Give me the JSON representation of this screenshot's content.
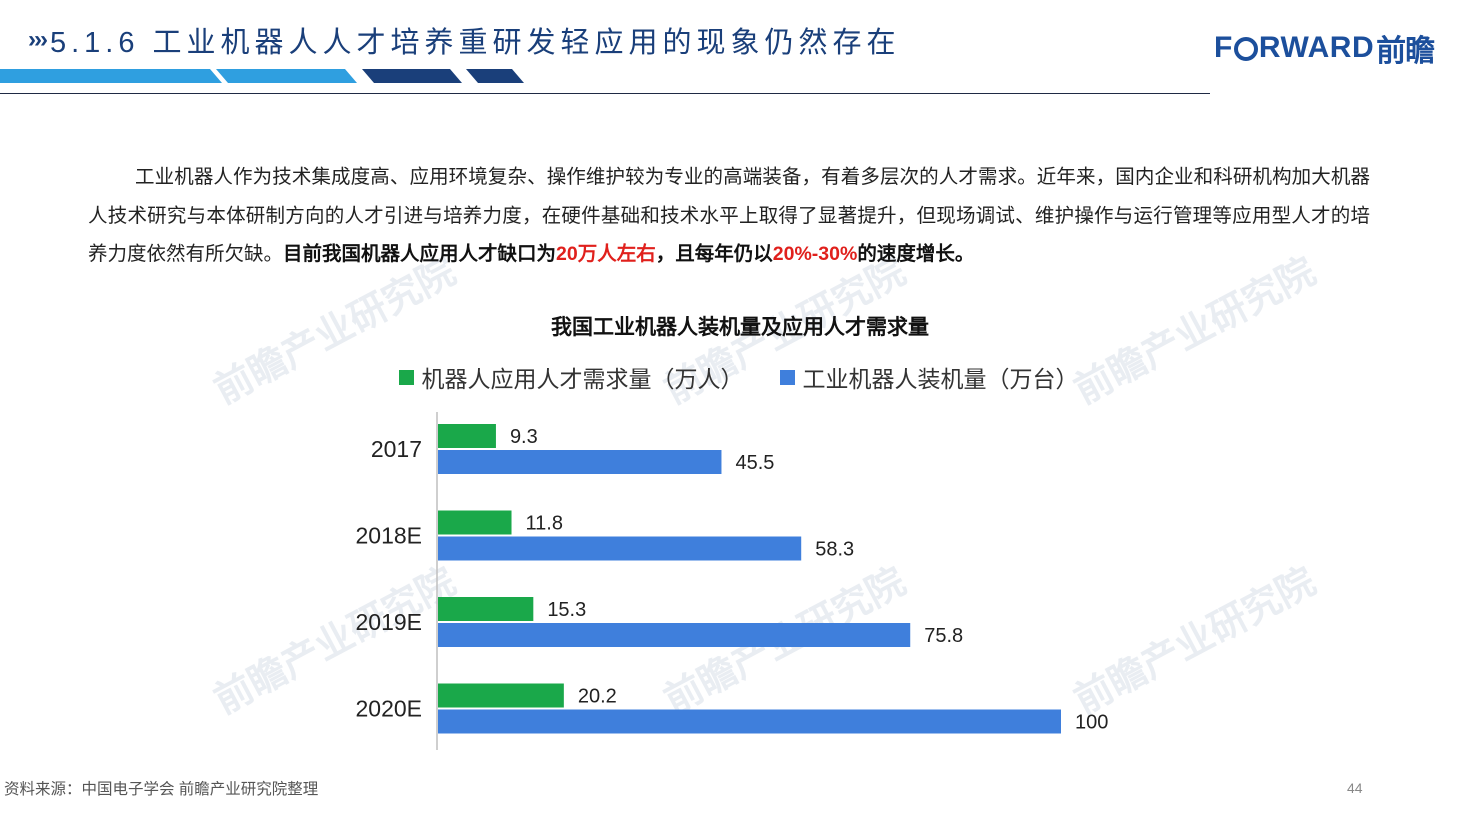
{
  "header": {
    "chevrons": "›››",
    "title": "5.1.6 工业机器人人才培养重研发轻应用的现象仍然存在",
    "logo_prefix": "F",
    "logo_suffix": "RWARD",
    "logo_cn": "前瞻"
  },
  "paragraph": {
    "normal": "工业机器人作为技术集成度高、应用环境复杂、操作维护较为专业的高端装备，有着多层次的人才需求。近年来，国内企业和科研机构加大机器人技术研究与本体研制方向的人才引进与培养力度，在硬件基础和技术水平上取得了显著提升，但现场调试、维护操作与运行管理等应用型人才的培养力度依然有所欠缺。",
    "bold_1": "目前我国机器人应用人才缺口为",
    "red_1": "20万人左右",
    "bold_2": "，且每年仍以",
    "red_2": "20%-30%",
    "bold_3": "的速度增长。"
  },
  "watermark": "前瞻产业研究院",
  "chart_data": {
    "type": "bar",
    "orientation": "horizontal",
    "title": "我国工业机器人装机量及应用人才需求量",
    "categories": [
      "2017",
      "2018E",
      "2019E",
      "2020E"
    ],
    "series": [
      {
        "name": "机器人应用人才需求量（万人）",
        "color": "#1aa84a",
        "values": [
          9.3,
          11.8,
          15.3,
          20.2
        ],
        "labels": [
          "9.3",
          "11.8",
          "15.3",
          "20.2"
        ]
      },
      {
        "name": "工业机器人装机量（万台）",
        "color": "#3f7fdc",
        "values": [
          45.5,
          58.3,
          75.8,
          100
        ],
        "labels": [
          "45.5",
          "58.3",
          "75.8",
          "100"
        ]
      }
    ],
    "xlim": [
      0,
      100
    ],
    "grid": false,
    "legend_position": "top"
  },
  "footer": {
    "source": "资料来源：中国电子学会 前瞻产业研究院整理",
    "page": "44"
  }
}
